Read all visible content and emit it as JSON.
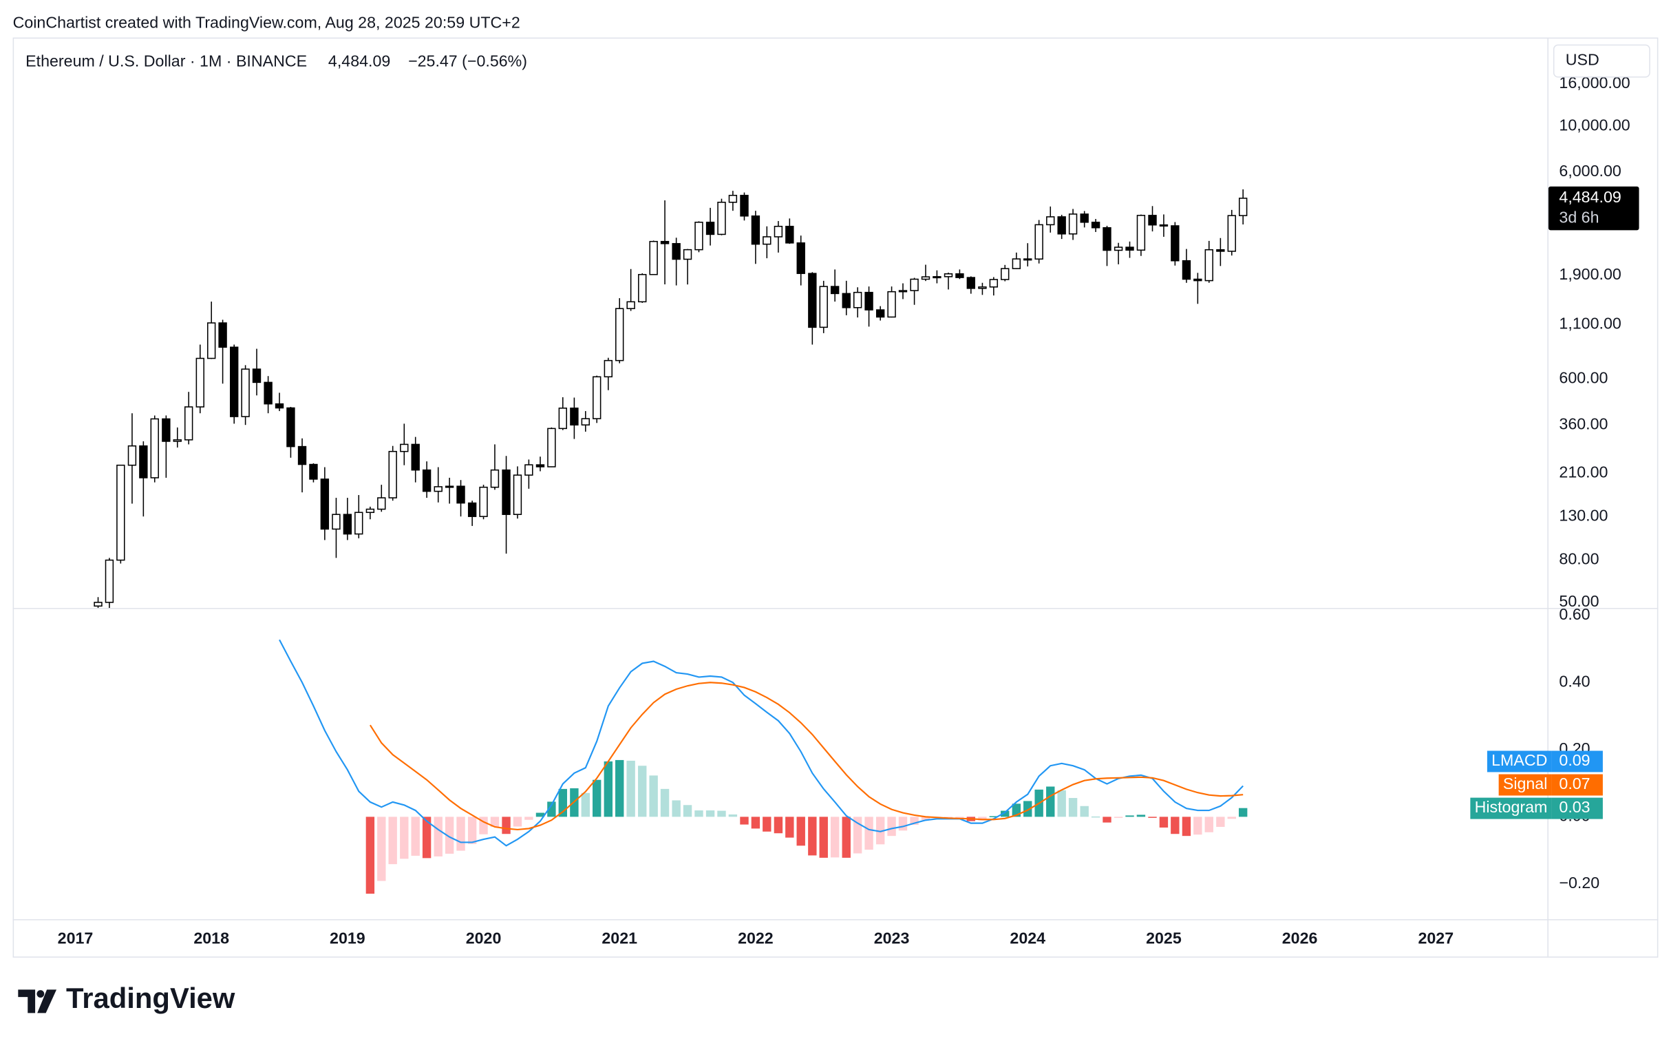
{
  "header": {
    "attribution": "CoinChartist created with TradingView.com, Aug 28, 2025 20:59 UTC+2"
  },
  "chart_data": [
    {
      "type": "candlestick",
      "symbol": "Ethereum / U.S. Dollar · 1M · BINANCE",
      "last": "4,484.09",
      "change": "−25.47 (−0.56%)",
      "currency": "USD",
      "price_tag": "4,484.09",
      "countdown": "3d 6h",
      "log_scale": true,
      "up_color": "#ffffff",
      "down_color": "#000000",
      "line_color": "#000000",
      "xlim": [
        2016.54,
        2027.82
      ],
      "ylim": [
        47,
        26800
      ],
      "yticks": [
        {
          "value": 50,
          "label": "50.00"
        },
        {
          "value": 80,
          "label": "80.00"
        },
        {
          "value": 130,
          "label": "130.00"
        },
        {
          "value": 210,
          "label": "210.00"
        },
        {
          "value": 360,
          "label": "360.00"
        },
        {
          "value": 600,
          "label": "600.00"
        },
        {
          "value": 1100,
          "label": "1,100.00"
        },
        {
          "value": 1900,
          "label": "1,900.00"
        },
        {
          "value": 6000,
          "label": "6,000.00"
        },
        {
          "value": 10000,
          "label": "10,000.00"
        },
        {
          "value": 16000,
          "label": "16,000.00"
        }
      ],
      "x": [
        2017.167,
        2017.25,
        2017.333,
        2017.417,
        2017.5,
        2017.583,
        2017.667,
        2017.75,
        2017.833,
        2017.917,
        2018,
        2018.083,
        2018.167,
        2018.25,
        2018.333,
        2018.417,
        2018.5,
        2018.583,
        2018.667,
        2018.75,
        2018.833,
        2018.917,
        2019,
        2019.083,
        2019.167,
        2019.25,
        2019.333,
        2019.417,
        2019.5,
        2019.583,
        2019.667,
        2019.75,
        2019.833,
        2019.917,
        2020,
        2020.083,
        2020.167,
        2020.25,
        2020.333,
        2020.417,
        2020.5,
        2020.583,
        2020.667,
        2020.75,
        2020.833,
        2020.917,
        2021,
        2021.083,
        2021.167,
        2021.25,
        2021.333,
        2021.417,
        2021.5,
        2021.583,
        2021.667,
        2021.75,
        2021.833,
        2021.917,
        2022,
        2022.083,
        2022.167,
        2022.25,
        2022.333,
        2022.417,
        2022.5,
        2022.583,
        2022.667,
        2022.75,
        2022.833,
        2022.917,
        2023,
        2023.083,
        2023.167,
        2023.25,
        2023.333,
        2023.417,
        2023.5,
        2023.583,
        2023.667,
        2023.75,
        2023.833,
        2023.917,
        2024,
        2024.083,
        2024.167,
        2024.25,
        2024.333,
        2024.417,
        2024.5,
        2024.583,
        2024.667,
        2024.75,
        2024.833,
        2024.917,
        2025,
        2025.083,
        2025.167,
        2025.25,
        2025.333,
        2025.417,
        2025.5,
        2025.583
      ],
      "open": [
        48,
        50,
        80,
        230,
        285,
        200,
        385,
        300,
        305,
        440,
        755,
        1120,
        855,
        395,
        670,
        578,
        455,
        435,
        283,
        232,
        197,
        113,
        133,
        107,
        136,
        141,
        160,
        268,
        290,
        218,
        172,
        181,
        182,
        151,
        130,
        180,
        218,
        133,
        206,
        231,
        226,
        346,
        434,
        360,
        386,
        615,
        737,
        1314,
        1417,
        1919,
        2772,
        2707,
        2275,
        2530,
        3433,
        3000,
        4288,
        4630,
        3680,
        2690,
        2920,
        3280,
        2727,
        1942,
        1067,
        1680,
        1553,
        1328,
        1573,
        1295,
        1196,
        1585,
        1605,
        1822,
        1870,
        1874,
        1934,
        1856,
        1645,
        1671,
        1815,
        2050,
        2283,
        2280,
        3340,
        3647,
        3015,
        3760,
        3433,
        3230,
        2513,
        2600,
        2518,
        3705,
        3332,
        3300,
        2237,
        1822,
        1793,
        2528,
        2486,
        3697
      ],
      "high": [
        53,
        82,
        230,
        410,
        300,
        400,
        400,
        350,
        520,
        880,
        1420,
        1160,
        880,
        700,
        840,
        620,
        515,
        440,
        310,
        235,
        225,
        160,
        160,
        165,
        145,
        185,
        285,
        365,
        315,
        240,
        225,
        200,
        195,
        155,
        185,
        290,
        255,
        227,
        245,
        253,
        350,
        490,
        488,
        420,
        623,
        760,
        1475,
        2040,
        1945,
        2800,
        4380,
        2890,
        2550,
        3470,
        4030,
        4460,
        4870,
        4780,
        3900,
        3280,
        3480,
        3580,
        2960,
        1970,
        1790,
        2030,
        1790,
        1665,
        1680,
        1350,
        1680,
        1740,
        1850,
        2140,
        2010,
        1960,
        2030,
        1880,
        1750,
        1865,
        2135,
        2450,
        2720,
        3520,
        4090,
        3730,
        3980,
        3890,
        3560,
        3300,
        2730,
        2770,
        3740,
        4110,
        3745,
        3440,
        2550,
        1955,
        2790,
        2880,
        3940,
        4950
      ],
      "low": [
        47,
        47,
        77,
        150,
        130,
        190,
        200,
        280,
        290,
        410,
        750,
        570,
        365,
        360,
        500,
        410,
        420,
        250,
        170,
        190,
        100,
        82,
        100,
        102,
        126,
        137,
        155,
        230,
        190,
        160,
        152,
        150,
        130,
        117,
        126,
        175,
        86,
        127,
        177,
        215,
        225,
        340,
        308,
        334,
        368,
        530,
        715,
        1280,
        1400,
        1910,
        1720,
        1700,
        1718,
        2460,
        2650,
        2970,
        3900,
        3500,
        2160,
        2300,
        2450,
        2700,
        1700,
        880,
        1000,
        1420,
        1220,
        1190,
        1075,
        1150,
        1190,
        1460,
        1370,
        1785,
        1740,
        1625,
        1825,
        1550,
        1530,
        1520,
        1780,
        2040,
        2100,
        2170,
        3060,
        2850,
        2820,
        3240,
        3080,
        2110,
        2150,
        2310,
        2360,
        3100,
        2920,
        2120,
        1750,
        1385,
        1750,
        2110,
        2370,
        3350
      ],
      "close": [
        50,
        80,
        230,
        285,
        200,
        385,
        300,
        305,
        440,
        755,
        1120,
        855,
        395,
        670,
        578,
        455,
        435,
        283,
        232,
        197,
        113,
        133,
        107,
        136,
        141,
        160,
        268,
        290,
        218,
        172,
        181,
        182,
        151,
        130,
        180,
        218,
        133,
        206,
        231,
        226,
        346,
        434,
        360,
        386,
        615,
        737,
        1314,
        1417,
        1919,
        2772,
        2707,
        2275,
        2530,
        3433,
        3000,
        4288,
        4630,
        3680,
        2690,
        2920,
        3280,
        2727,
        1942,
        1067,
        1680,
        1553,
        1328,
        1573,
        1295,
        1196,
        1585,
        1605,
        1822,
        1870,
        1874,
        1934,
        1856,
        1645,
        1671,
        1815,
        2050,
        2283,
        2280,
        3340,
        3647,
        3015,
        3760,
        3433,
        3230,
        2513,
        2600,
        2518,
        3705,
        3332,
        3300,
        2237,
        1822,
        1793,
        2528,
        2486,
        3697,
        4484.09
      ]
    },
    {
      "type": "macd",
      "xlim": [
        2016.54,
        2027.82
      ],
      "xticks": [
        2017,
        2018,
        2019,
        2020,
        2021,
        2022,
        2023,
        2024,
        2025,
        2026,
        2027
      ],
      "ylim": [
        -0.305,
        0.622
      ],
      "yticks": [
        {
          "value": 0.6,
          "label": "0.60"
        },
        {
          "value": 0.4,
          "label": "0.40"
        },
        {
          "value": 0.2,
          "label": "0.20"
        },
        {
          "value": 0,
          "label": "0.00"
        },
        {
          "value": -0.2,
          "label": "−0.20"
        }
      ],
      "hist_colors": {
        "grow_above": "#26a69a",
        "fall_above": "#b2dfdb",
        "grow_below": "#ffcdd2",
        "fall_below": "#ef5350"
      },
      "x": [
        2018.5,
        2018.583,
        2018.667,
        2018.75,
        2018.833,
        2018.917,
        2019,
        2019.083,
        2019.167,
        2019.25,
        2019.333,
        2019.417,
        2019.5,
        2019.583,
        2019.667,
        2019.75,
        2019.833,
        2019.917,
        2020,
        2020.083,
        2020.167,
        2020.25,
        2020.333,
        2020.417,
        2020.5,
        2020.583,
        2020.667,
        2020.75,
        2020.833,
        2020.917,
        2021,
        2021.083,
        2021.167,
        2021.25,
        2021.333,
        2021.417,
        2021.5,
        2021.583,
        2021.667,
        2021.75,
        2021.833,
        2021.917,
        2022,
        2022.083,
        2022.167,
        2022.25,
        2022.333,
        2022.417,
        2022.5,
        2022.583,
        2022.667,
        2022.75,
        2022.833,
        2022.917,
        2023,
        2023.083,
        2023.167,
        2023.25,
        2023.333,
        2023.417,
        2023.5,
        2023.583,
        2023.667,
        2023.75,
        2023.833,
        2023.917,
        2024,
        2024.083,
        2024.167,
        2024.25,
        2024.333,
        2024.417,
        2024.5,
        2024.583,
        2024.667,
        2024.75,
        2024.833,
        2024.917,
        2025,
        2025.083,
        2025.167,
        2025.25,
        2025.333,
        2025.417,
        2025.5,
        2025.583
      ],
      "series": [
        {
          "name": "LMACD",
          "color": "#2196f3",
          "legend_value": "0.09",
          "style": "line",
          "values": [
            0.527,
            0.463,
            0.4,
            0.33,
            0.257,
            0.194,
            0.14,
            0.076,
            0.044,
            0.029,
            0.044,
            0.035,
            0.019,
            -0.013,
            -0.038,
            -0.06,
            -0.076,
            -0.076,
            -0.067,
            -0.06,
            -0.086,
            -0.067,
            -0.044,
            -0.013,
            0.035,
            0.098,
            0.13,
            0.146,
            0.225,
            0.33,
            0.384,
            0.432,
            0.457,
            0.463,
            0.448,
            0.429,
            0.425,
            0.416,
            0.419,
            0.416,
            0.4,
            0.362,
            0.337,
            0.311,
            0.286,
            0.248,
            0.194,
            0.13,
            0.083,
            0.044,
            0.003,
            -0.019,
            -0.038,
            -0.044,
            -0.035,
            -0.029,
            -0.019,
            -0.01,
            -0.006,
            -0.006,
            -0.006,
            -0.019,
            -0.019,
            -0.006,
            0.013,
            0.044,
            0.067,
            0.121,
            0.152,
            0.159,
            0.152,
            0.14,
            0.114,
            0.098,
            0.114,
            0.121,
            0.124,
            0.114,
            0.076,
            0.044,
            0.025,
            0.019,
            0.019,
            0.032,
            0.057,
            0.092
          ]
        },
        {
          "name": "Signal",
          "color": "#ff6d00",
          "legend_value": "0.07",
          "style": "line",
          "values": [
            null,
            null,
            null,
            null,
            null,
            null,
            null,
            null,
            0.273,
            0.22,
            0.185,
            0.16,
            0.135,
            0.11,
            0.08,
            0.05,
            0.025,
            0.005,
            -0.015,
            -0.03,
            -0.035,
            -0.038,
            -0.035,
            -0.025,
            -0.01,
            0.015,
            0.045,
            0.075,
            0.115,
            0.165,
            0.215,
            0.265,
            0.305,
            0.34,
            0.365,
            0.38,
            0.39,
            0.397,
            0.4,
            0.398,
            0.393,
            0.385,
            0.372,
            0.355,
            0.335,
            0.31,
            0.28,
            0.245,
            0.205,
            0.165,
            0.125,
            0.09,
            0.06,
            0.038,
            0.022,
            0.012,
            0.005,
            0.0,
            -0.002,
            -0.004,
            -0.005,
            -0.006,
            -0.008,
            -0.008,
            -0.005,
            0.005,
            0.02,
            0.04,
            0.062,
            0.08,
            0.096,
            0.108,
            0.113,
            0.115,
            0.116,
            0.117,
            0.118,
            0.116,
            0.108,
            0.095,
            0.082,
            0.072,
            0.065,
            0.062,
            0.063,
            0.066
          ]
        },
        {
          "name": "Histogram",
          "color": "#26a69a",
          "legend_value": "0.03",
          "style": "histogram",
          "values": [
            null,
            null,
            null,
            null,
            null,
            null,
            null,
            null,
            -0.229,
            -0.191,
            -0.141,
            -0.125,
            -0.116,
            -0.123,
            -0.118,
            -0.11,
            -0.101,
            -0.081,
            -0.052,
            -0.03,
            -0.051,
            -0.029,
            -0.009,
            0.012,
            0.045,
            0.083,
            0.085,
            0.071,
            0.11,
            0.165,
            0.169,
            0.167,
            0.152,
            0.123,
            0.083,
            0.049,
            0.035,
            0.019,
            0.019,
            0.018,
            0.007,
            -0.023,
            -0.035,
            -0.044,
            -0.049,
            -0.062,
            -0.086,
            -0.115,
            -0.122,
            -0.121,
            -0.122,
            -0.109,
            -0.098,
            -0.082,
            -0.057,
            -0.041,
            -0.024,
            -0.01,
            -0.004,
            -0.002,
            -0.001,
            -0.013,
            -0.011,
            0.002,
            0.018,
            0.039,
            0.047,
            0.081,
            0.09,
            0.079,
            0.056,
            0.032,
            0.001,
            -0.017,
            -0.002,
            0.004,
            0.006,
            -0.002,
            -0.032,
            -0.051,
            -0.057,
            -0.053,
            -0.046,
            -0.03,
            -0.006,
            0.026
          ]
        }
      ]
    }
  ],
  "footer": {
    "brand": "TradingView"
  }
}
